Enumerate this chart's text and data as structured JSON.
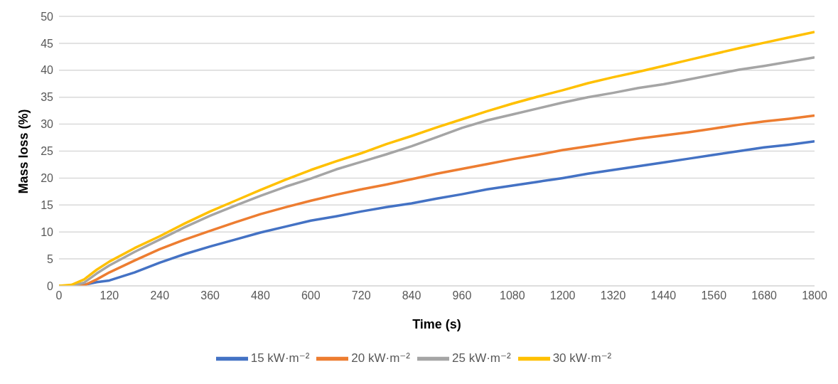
{
  "chart_data": {
    "type": "line",
    "xlabel": "Time (s)",
    "ylabel": "Mass loss (%)",
    "x": [
      0,
      30,
      60,
      90,
      120,
      180,
      240,
      300,
      360,
      420,
      480,
      540,
      600,
      660,
      720,
      780,
      840,
      900,
      960,
      1020,
      1080,
      1140,
      1200,
      1260,
      1320,
      1380,
      1440,
      1500,
      1560,
      1620,
      1680,
      1740,
      1800
    ],
    "series": [
      {
        "name": "15 kW·m⁻²",
        "color": "#4472c4",
        "values": [
          0,
          0,
          0.2,
          0.7,
          1.0,
          2.5,
          4.3,
          5.9,
          7.3,
          8.6,
          9.9,
          11.0,
          12.1,
          12.9,
          13.8,
          14.6,
          15.3,
          16.2,
          17.0,
          17.9,
          18.6,
          19.3,
          20.0,
          20.8,
          21.5,
          22.2,
          22.9,
          23.6,
          24.3,
          25.0,
          25.7,
          26.2,
          26.8
        ]
      },
      {
        "name": "20 kW·m⁻²",
        "color": "#ed7d31",
        "values": [
          0,
          0,
          0.1,
          1.2,
          2.5,
          4.7,
          6.8,
          8.6,
          10.2,
          11.8,
          13.3,
          14.6,
          15.8,
          16.9,
          17.9,
          18.8,
          19.8,
          20.8,
          21.7,
          22.6,
          23.5,
          24.3,
          25.2,
          25.9,
          26.6,
          27.3,
          27.9,
          28.5,
          29.2,
          29.9,
          30.5,
          31.0,
          31.6
        ]
      },
      {
        "name": "25 kW·m⁻²",
        "color": "#a5a5a5",
        "values": [
          0,
          0,
          0.6,
          2.3,
          3.8,
          6.3,
          8.6,
          10.9,
          13.0,
          14.9,
          16.7,
          18.4,
          19.9,
          21.6,
          23.0,
          24.4,
          25.9,
          27.6,
          29.3,
          30.7,
          31.8,
          32.9,
          34.0,
          35.0,
          35.8,
          36.7,
          37.4,
          38.3,
          39.2,
          40.1,
          40.8,
          41.6,
          42.4
        ]
      },
      {
        "name": "30 kW·m⁻²",
        "color": "#ffc000",
        "values": [
          0,
          0.2,
          1.2,
          3.0,
          4.5,
          7.0,
          9.2,
          11.6,
          13.8,
          15.8,
          17.8,
          19.7,
          21.5,
          23.1,
          24.6,
          26.3,
          27.8,
          29.4,
          30.9,
          32.4,
          33.8,
          35.1,
          36.3,
          37.6,
          38.7,
          39.7,
          40.8,
          41.9,
          43.0,
          44.1,
          45.1,
          46.1,
          47.1
        ]
      }
    ],
    "xlim": [
      0,
      1800
    ],
    "xticks": [
      0,
      120,
      240,
      360,
      480,
      600,
      720,
      840,
      960,
      1080,
      1200,
      1320,
      1440,
      1560,
      1680,
      1800
    ],
    "ylim": [
      0,
      50
    ],
    "yticks": [
      0,
      5,
      10,
      15,
      20,
      25,
      30,
      35,
      40,
      45,
      50
    ],
    "grid": "y",
    "legend": "bottom",
    "marker": "none",
    "line_style": "solid"
  }
}
